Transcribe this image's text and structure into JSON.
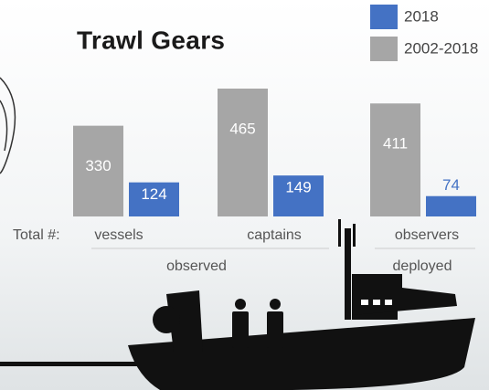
{
  "chart_data": {
    "type": "bar",
    "title": "Trawl Gears",
    "total_label": "Total #:",
    "categories": [
      "vessels",
      "captains",
      "observers"
    ],
    "groups": [
      "observed",
      "deployed"
    ],
    "series": [
      {
        "name": "2002-2018",
        "color": "#a6a6a6",
        "values": [
          330,
          465,
          411
        ]
      },
      {
        "name": "2018",
        "color": "#4472c4",
        "values": [
          124,
          149,
          74
        ]
      }
    ]
  }
}
